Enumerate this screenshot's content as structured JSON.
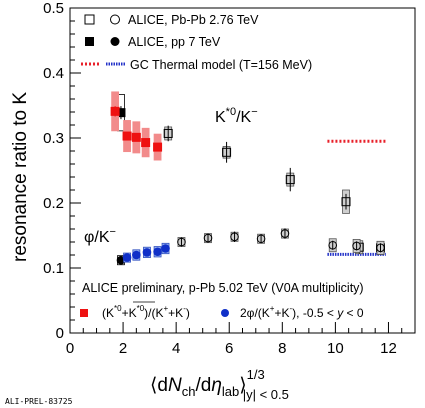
{
  "chart_data": {
    "type": "scatter",
    "xlabel_main": "⟨dN",
    "xlabel_sub1": "ch",
    "xlabel_mid": "/dη",
    "xlabel_sub2": "lab",
    "xlabel_close": "⟩",
    "xlabel_sup": "1/3",
    "xlabel_sub3": "|y| < 0.5",
    "ylabel": "resonance ratio to K",
    "xlim": [
      0,
      13
    ],
    "ylim": [
      0,
      0.5
    ],
    "x_ticks": [
      "0",
      "2",
      "4",
      "6",
      "8",
      "10",
      "12"
    ],
    "y_ticks": [
      "0",
      "0.1",
      "0.2",
      "0.3",
      "0.4",
      "0.5"
    ],
    "grid": false,
    "legend_top": [
      {
        "label": "ALICE, Pb-Pb 2.76 TeV"
      },
      {
        "label": "ALICE, pp 7 TeV"
      },
      {
        "label": "GC Thermal model (T=156 MeV)"
      }
    ],
    "legend_bottom": {
      "title": "ALICE preliminary, p-Pb 5.02 TeV (V0A multiplicity)",
      "items": [
        {
          "label": "(K*0+K*0)/(K+ + K−)"
        },
        {
          "label": "2φ/(K+ + K−), -0.5 < y < 0"
        }
      ]
    },
    "annotation_kstar": "K*0/K−",
    "annotation_phi": "φ/K−",
    "watermark": "ALI-PREL-83725",
    "series": [
      {
        "name": "ALICE, Pb-Pb 2.76 TeV",
        "marker": "open-square",
        "points": [
          {
            "x": 3.7,
            "y": 0.307,
            "stat": 0.012,
            "sys": 0.01
          },
          {
            "x": 5.9,
            "y": 0.278,
            "stat": 0.016,
            "sys": 0.009
          },
          {
            "x": 8.3,
            "y": 0.236,
            "stat": 0.018,
            "sys": 0.01
          },
          {
            "x": 10.4,
            "y": 0.202,
            "stat": 0.012,
            "sys": 0.018
          },
          {
            "x": 10.9,
            "y": 0.132,
            "stat": 0.01,
            "sys": 0.01
          },
          {
            "x": 11.7,
            "y": 0.131,
            "stat": 0.01,
            "sys": 0.01
          }
        ]
      },
      {
        "name": "ALICE, Pb-Pb 2.76 TeV φ",
        "marker": "open-circle",
        "points": [
          {
            "x": 4.2,
            "y": 0.14,
            "stat": 0.007,
            "sys": 0.007
          },
          {
            "x": 5.2,
            "y": 0.146,
            "stat": 0.007,
            "sys": 0.007
          },
          {
            "x": 6.2,
            "y": 0.148,
            "stat": 0.008,
            "sys": 0.007
          },
          {
            "x": 7.2,
            "y": 0.145,
            "stat": 0.007,
            "sys": 0.007
          },
          {
            "x": 8.1,
            "y": 0.153,
            "stat": 0.008,
            "sys": 0.007
          },
          {
            "x": 9.9,
            "y": 0.135,
            "stat": 0.007,
            "sys": 0.01
          },
          {
            "x": 10.8,
            "y": 0.134,
            "stat": 0.007,
            "sys": 0.01
          },
          {
            "x": 11.7,
            "y": 0.131,
            "stat": 0.007,
            "sys": 0.01
          }
        ]
      },
      {
        "name": "ALICE, pp 7 TeV K*0",
        "marker": "filled-square",
        "points": [
          {
            "x": 1.92,
            "y": 0.339,
            "stat": 0.01,
            "sys": 0.028
          }
        ]
      },
      {
        "name": "ALICE, pp 7 TeV φ",
        "marker": "filled-circle",
        "points": [
          {
            "x": 1.92,
            "y": 0.112,
            "stat": 0.004,
            "sys": 0.007
          }
        ]
      },
      {
        "name": "p-Pb K*0/K",
        "marker": "red-square",
        "points": [
          {
            "x": 1.7,
            "y": 0.341,
            "stat": 0.008,
            "sys": 0.03
          },
          {
            "x": 2.15,
            "y": 0.303,
            "stat": 0.006,
            "sys": 0.024
          },
          {
            "x": 2.5,
            "y": 0.301,
            "stat": 0.006,
            "sys": 0.024
          },
          {
            "x": 2.85,
            "y": 0.293,
            "stat": 0.006,
            "sys": 0.022
          },
          {
            "x": 3.3,
            "y": 0.286,
            "stat": 0.006,
            "sys": 0.02
          }
        ]
      },
      {
        "name": "p-Pb φ/K",
        "marker": "blue-circle",
        "points": [
          {
            "x": 2.15,
            "y": 0.116,
            "stat": 0.003,
            "sys": 0.007
          },
          {
            "x": 2.5,
            "y": 0.12,
            "stat": 0.003,
            "sys": 0.008
          },
          {
            "x": 2.9,
            "y": 0.124,
            "stat": 0.003,
            "sys": 0.008
          },
          {
            "x": 3.3,
            "y": 0.125,
            "stat": 0.003,
            "sys": 0.008
          },
          {
            "x": 3.6,
            "y": 0.13,
            "stat": 0.003,
            "sys": 0.008
          }
        ]
      }
    ],
    "thermal_lines": [
      {
        "x": [
          9.7,
          11.9
        ],
        "y": 0.295,
        "color": "#e8202a"
      },
      {
        "x": [
          9.7,
          11.9
        ],
        "y": 0.121,
        "color": "#2433c8"
      }
    ],
    "colors": {
      "red_marker": "#ee1111",
      "red_box": "#f28b8b",
      "blue_marker": "#1030c8",
      "blue_box": "#9ab4ee",
      "gray_box": "#cfcfcf"
    }
  }
}
